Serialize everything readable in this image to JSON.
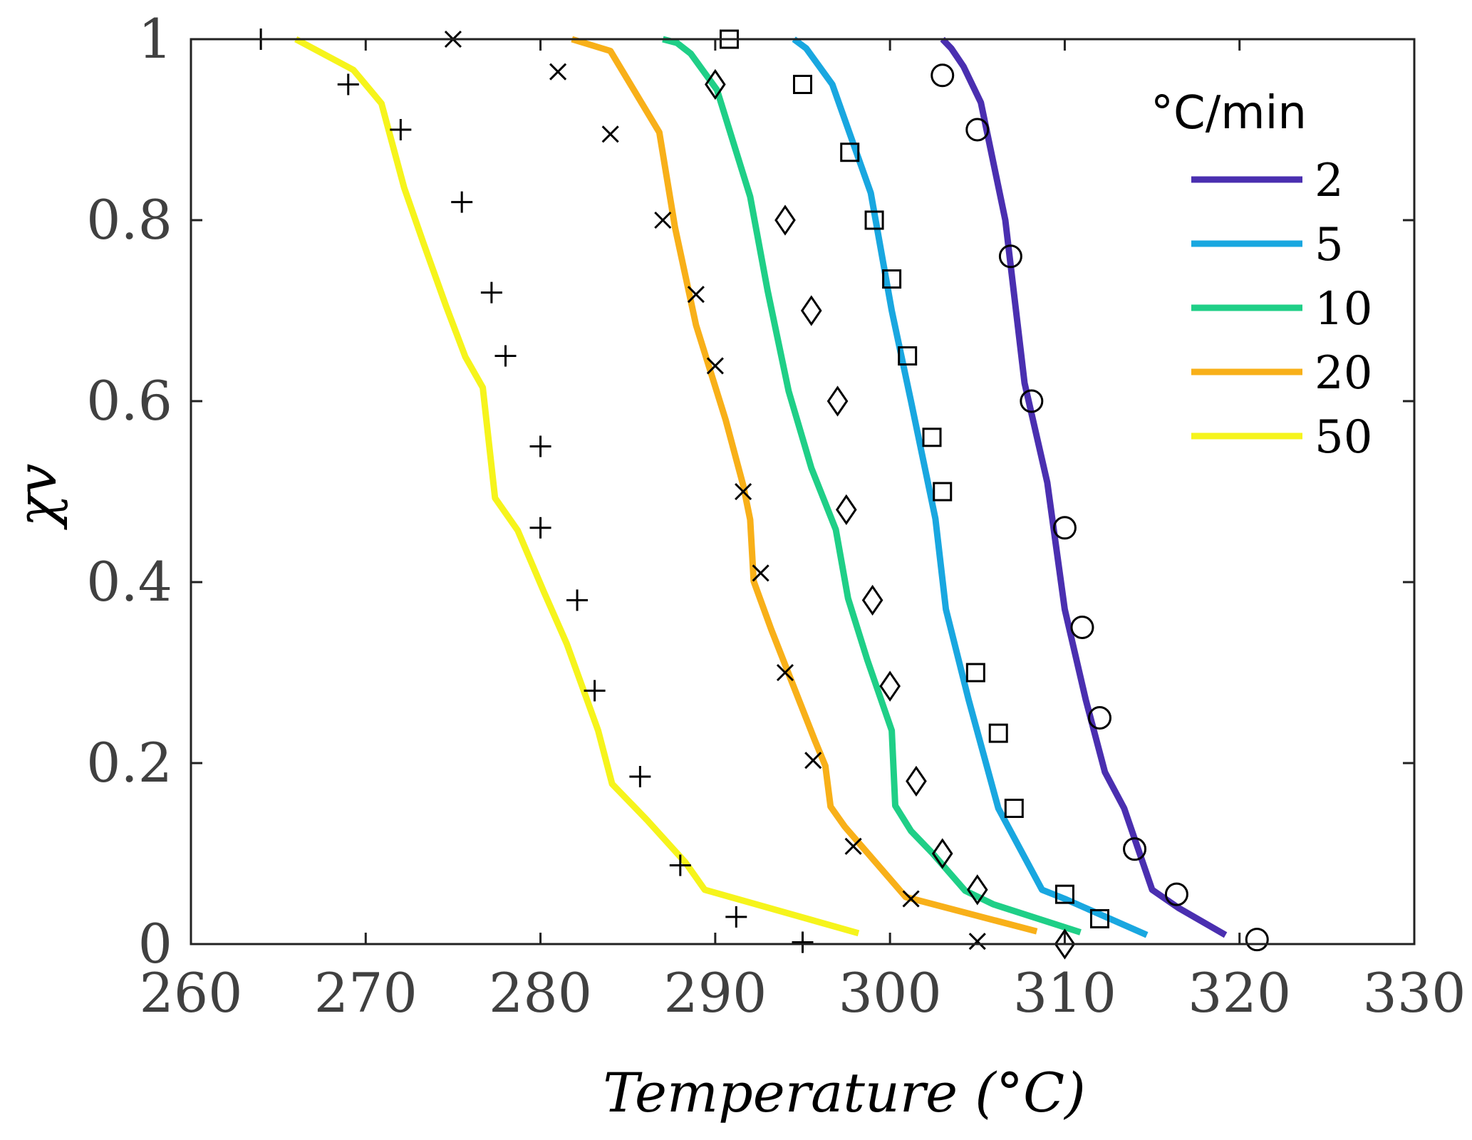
{
  "chart_data": {
    "type": "line",
    "title": "",
    "xlabel": "Temperature (°C)",
    "ylabel": "χv",
    "xlim": [
      260,
      330
    ],
    "ylim": [
      0,
      1
    ],
    "xticks": [
      260,
      270,
      280,
      290,
      300,
      310,
      320,
      330
    ],
    "yticks": [
      0,
      0.2,
      0.4,
      0.6,
      0.8,
      1
    ],
    "ytick_labels": [
      "0",
      "0.2",
      "0.4",
      "0.6",
      "0.8",
      "1"
    ],
    "legend": {
      "title": "°C/min",
      "position": "top-right"
    },
    "series": [
      {
        "name": "2",
        "color": "#4a2fb0",
        "x": [
          303.0,
          303.5,
          304.2,
          305.2,
          306.6,
          307.7,
          309.0,
          310.0,
          311.2,
          312.3,
          313.4,
          315.0,
          316.5,
          319.2
        ],
        "y": [
          1.0,
          0.99,
          0.97,
          0.93,
          0.8,
          0.62,
          0.51,
          0.37,
          0.27,
          0.19,
          0.15,
          0.06,
          0.04,
          0.01
        ],
        "markers": {
          "symbol": "circle",
          "x": [
            303.0,
            305.0,
            306.9,
            308.1,
            310.0,
            311.0,
            312.0,
            314.0,
            316.4,
            321.0
          ],
          "y": [
            0.96,
            0.9,
            0.76,
            0.6,
            0.46,
            0.35,
            0.25,
            0.105,
            0.055,
            0.005
          ]
        }
      },
      {
        "name": "5",
        "color": "#19a7e0",
        "x": [
          294.5,
          295.2,
          296.7,
          298.9,
          300.1,
          301.2,
          302.6,
          303.2,
          304.5,
          306.2,
          308.7,
          310.0,
          314.7
        ],
        "y": [
          1.0,
          0.99,
          0.95,
          0.83,
          0.7,
          0.6,
          0.47,
          0.37,
          0.27,
          0.15,
          0.06,
          0.05,
          0.01
        ],
        "markers": {
          "symbol": "square",
          "x": [
            290.8,
            295.0,
            297.7,
            299.1,
            300.1,
            301.0,
            302.4,
            303.0,
            304.9,
            306.2,
            307.1,
            310.0,
            312.0
          ],
          "y": [
            1.0,
            0.95,
            0.875,
            0.8,
            0.735,
            0.65,
            0.56,
            0.5,
            0.3,
            0.233,
            0.15,
            0.055,
            0.028
          ]
        }
      },
      {
        "name": "10",
        "color": "#1fcf87",
        "x": [
          287.0,
          287.8,
          288.6,
          290.1,
          292.0,
          293.0,
          294.2,
          295.5,
          296.9,
          297.6,
          298.7,
          300.1,
          300.3,
          301.2,
          302.4,
          304.3,
          305.9,
          310.9
        ],
        "y": [
          1.0,
          0.996,
          0.984,
          0.944,
          0.826,
          0.722,
          0.611,
          0.526,
          0.458,
          0.382,
          0.314,
          0.236,
          0.153,
          0.125,
          0.101,
          0.059,
          0.044,
          0.013
        ],
        "markers": {
          "symbol": "diamond",
          "x": [
            290.0,
            294.0,
            295.5,
            297.0,
            297.5,
            299.0,
            300.0,
            301.5,
            303.0,
            305.0,
            310.0
          ],
          "y": [
            0.95,
            0.8,
            0.7,
            0.6,
            0.48,
            0.38,
            0.285,
            0.18,
            0.1,
            0.06,
            0.0
          ]
        }
      },
      {
        "name": "20",
        "color": "#f8b019",
        "x": [
          281.8,
          284.0,
          286.8,
          287.7,
          288.9,
          290.6,
          291.6,
          292.0,
          292.2,
          293.2,
          294.5,
          295.7,
          296.3,
          296.6,
          297.4,
          300.9,
          308.4
        ],
        "y": [
          1.0,
          0.987,
          0.897,
          0.792,
          0.684,
          0.579,
          0.507,
          0.469,
          0.401,
          0.348,
          0.284,
          0.225,
          0.197,
          0.152,
          0.13,
          0.052,
          0.014
        ],
        "markers": {
          "symbol": "x",
          "x": [
            275.0,
            281.0,
            284.0,
            287.0,
            288.9,
            290.0,
            291.6,
            292.6,
            294.0,
            295.6,
            297.9,
            301.2,
            305.0
          ],
          "y": [
            1.0,
            0.964,
            0.895,
            0.8,
            0.718,
            0.639,
            0.5,
            0.41,
            0.3,
            0.203,
            0.108,
            0.05,
            0.003
          ]
        }
      },
      {
        "name": "50",
        "color": "#f6f41c",
        "x": [
          266.0,
          269.3,
          270.9,
          272.2,
          273.3,
          274.6,
          275.7,
          276.7,
          277.4,
          278.7,
          280.2,
          281.5,
          283.3,
          284.1,
          286.1,
          288.3,
          289.4,
          298.2
        ],
        "y": [
          1.0,
          0.966,
          0.929,
          0.836,
          0.775,
          0.705,
          0.649,
          0.615,
          0.493,
          0.457,
          0.389,
          0.332,
          0.236,
          0.177,
          0.137,
          0.09,
          0.06,
          0.012
        ],
        "markers": {
          "symbol": "plus",
          "x": [
            264.0,
            269.0,
            272.0,
            275.5,
            277.2,
            278.0,
            280.0,
            280.0,
            282.1,
            283.1,
            285.7,
            288.0,
            291.2,
            295.0
          ],
          "y": [
            1.0,
            0.95,
            0.9,
            0.82,
            0.72,
            0.65,
            0.55,
            0.46,
            0.38,
            0.28,
            0.185,
            0.087,
            0.03,
            0.002
          ]
        }
      }
    ]
  }
}
